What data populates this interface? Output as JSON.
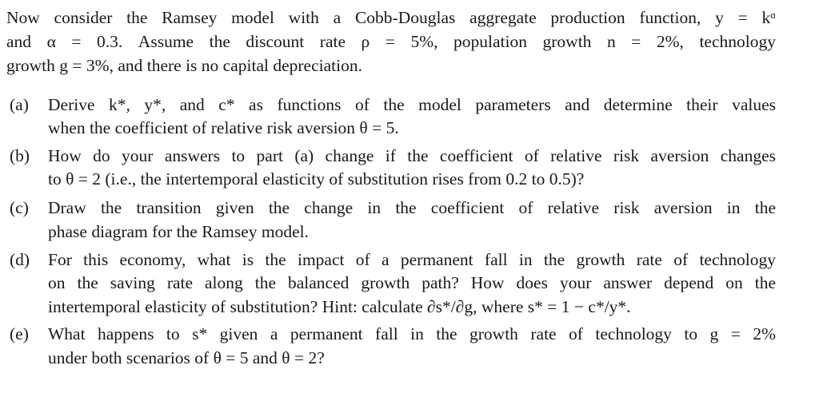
{
  "intro": {
    "lines": [
      "Now consider the Ramsey model with a Cobb-Douglas aggregate production function, y = kᵅ",
      "and α = 0.3. Assume the discount rate ρ = 5%, population growth n = 2%, technology",
      "growth g = 3%, and there is no capital depreciation."
    ]
  },
  "parts": [
    {
      "label": "(a)",
      "lines": [
        "Derive k*, y*, and c* as functions of the model parameters and determine their values",
        "when the coefficient of relative risk aversion θ = 5."
      ]
    },
    {
      "label": "(b)",
      "lines": [
        "How do your answers to part (a) change if the coefficient of relative risk aversion changes",
        "to θ = 2 (i.e., the intertemporal elasticity of substitution rises from 0.2 to 0.5)?"
      ]
    },
    {
      "label": "(c)",
      "lines": [
        "Draw the transition given the change in the coefficient of relative risk aversion in the",
        "phase diagram for the Ramsey model."
      ]
    },
    {
      "label": "(d)",
      "lines": [
        "For this economy, what is the impact of a permanent fall in the growth rate of technology",
        "on the saving rate along the balanced growth path? How does your answer depend on the",
        "intertemporal elasticity of substitution? Hint: calculate ∂s*/∂g, where s* = 1 − c*/y*."
      ]
    },
    {
      "label": "(e)",
      "lines": [
        "What happens to s* given a permanent fall in the growth rate of technology to g = 2%",
        "under both scenarios of θ = 5 and θ = 2?"
      ]
    }
  ]
}
